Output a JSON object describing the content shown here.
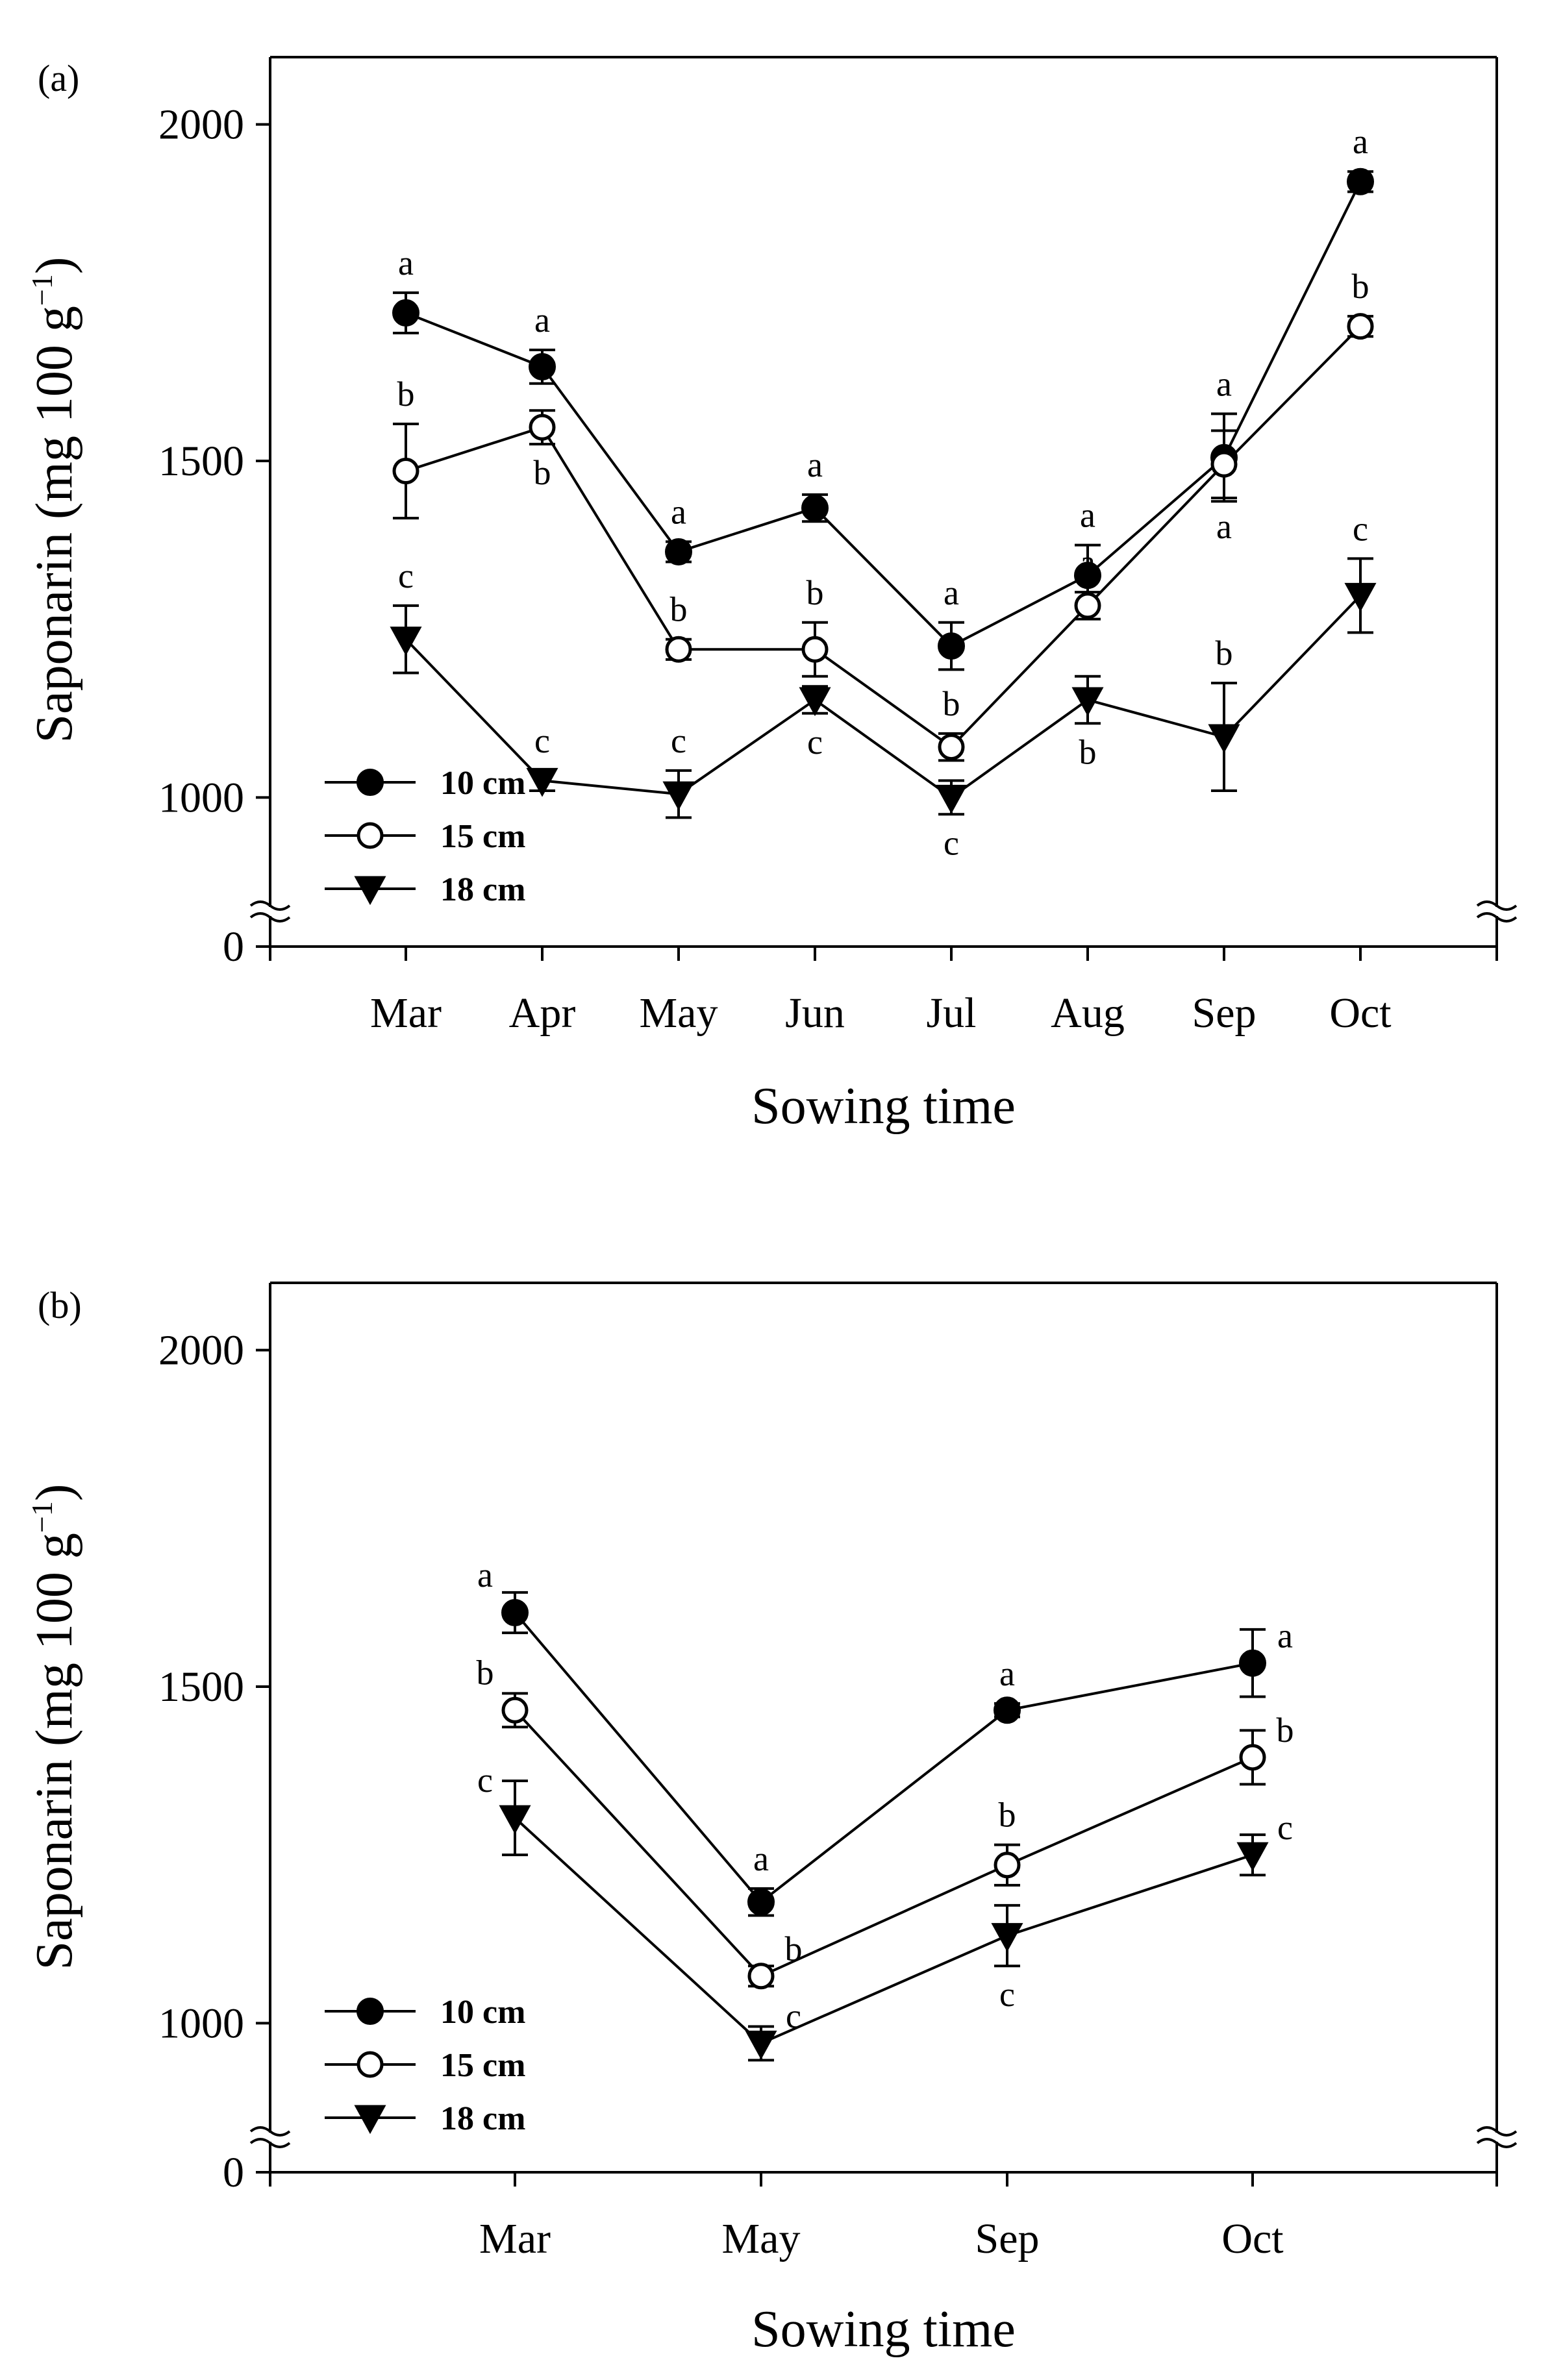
{
  "chart_data": [
    {
      "panel": "(a)",
      "type": "line",
      "xlabel": "Sowing time",
      "ylabel": "Saponarin (mg 100 g",
      "ylabel_sup": "−1",
      "ylabel_close": ")",
      "ylim": [
        0,
        2100
      ],
      "y_axis_break": [
        0,
        900
      ],
      "yticks": [
        "0",
        "1000",
        "1500",
        "2000"
      ],
      "ytick_values": [
        0,
        1000,
        1500,
        2000
      ],
      "categories": [
        "Mar",
        "Apr",
        "May",
        "Jun",
        "Jul",
        "Aug",
        "Sep",
        "Oct"
      ],
      "legend": {
        "position": "bottom-left",
        "entries": [
          "10 cm",
          "15 cm",
          "18 cm"
        ]
      },
      "series": [
        {
          "name": "10 cm",
          "marker": "filled-circle",
          "values": [
            1720,
            1640,
            1365,
            1430,
            1225,
            1330,
            1505,
            1915
          ],
          "errors": [
            30,
            25,
            15,
            20,
            35,
            45,
            65,
            15
          ],
          "letters": [
            "a",
            "a",
            "a",
            "a",
            "a",
            "a",
            "a",
            "a"
          ],
          "letter_pos": [
            "above",
            "above",
            "above",
            "above",
            "above",
            "above",
            "above",
            "above"
          ]
        },
        {
          "name": "15 cm",
          "marker": "open-circle",
          "values": [
            1485,
            1550,
            1220,
            1220,
            1075,
            1285,
            1495,
            1700
          ],
          "errors": [
            70,
            25,
            15,
            40,
            20,
            20,
            50,
            15
          ],
          "letters": [
            "b",
            "b",
            "b",
            "b",
            "b",
            "a",
            "a",
            "b"
          ],
          "letter_pos": [
            "above",
            "below",
            "above",
            "above",
            "above",
            "above",
            "below",
            "above"
          ]
        },
        {
          "name": "18 cm",
          "marker": "filled-triangle-down",
          "values": [
            1235,
            1025,
            1005,
            1145,
            1000,
            1145,
            1090,
            1300
          ],
          "errors": [
            50,
            15,
            35,
            20,
            25,
            35,
            80,
            55
          ],
          "letters": [
            "c",
            "c",
            "c",
            "c",
            "c",
            "b",
            "b",
            "c"
          ],
          "letter_pos": [
            "above",
            "above",
            "above",
            "below",
            "below",
            "below",
            "above",
            "above"
          ]
        }
      ]
    },
    {
      "panel": "(b)",
      "type": "line",
      "xlabel": "Sowing time",
      "ylabel": "Saponarin (mg 100 g",
      "ylabel_sup": "−1",
      "ylabel_close": ")",
      "ylim": [
        0,
        2100
      ],
      "y_axis_break": [
        0,
        900
      ],
      "yticks": [
        "0",
        "1000",
        "1500",
        "2000"
      ],
      "ytick_values": [
        0,
        1000,
        1500,
        2000
      ],
      "categories": [
        "Mar",
        "May",
        "Sep",
        "Oct"
      ],
      "legend": {
        "position": "bottom-left",
        "entries": [
          "10 cm",
          "15 cm",
          "18 cm"
        ]
      },
      "series": [
        {
          "name": "10 cm",
          "marker": "filled-circle",
          "values": [
            1610,
            1180,
            1465,
            1535
          ],
          "errors": [
            30,
            20,
            10,
            50
          ],
          "letters": [
            "a",
            "a",
            "a",
            "a"
          ],
          "letter_pos": [
            "above-left",
            "above",
            "above",
            "above-right"
          ]
        },
        {
          "name": "15 cm",
          "marker": "open-circle",
          "values": [
            1465,
            1070,
            1235,
            1395
          ],
          "errors": [
            25,
            15,
            30,
            40
          ],
          "letters": [
            "b",
            "b",
            "b",
            "b"
          ],
          "letter_pos": [
            "above-left",
            "above-right",
            "above",
            "above-right"
          ]
        },
        {
          "name": "18 cm",
          "marker": "filled-triangle-down",
          "values": [
            1305,
            970,
            1130,
            1250
          ],
          "errors": [
            55,
            25,
            45,
            30
          ],
          "letters": [
            "c",
            "c",
            "c",
            "c"
          ],
          "letter_pos": [
            "above-left",
            "above-right",
            "below",
            "above-right"
          ]
        }
      ]
    }
  ]
}
